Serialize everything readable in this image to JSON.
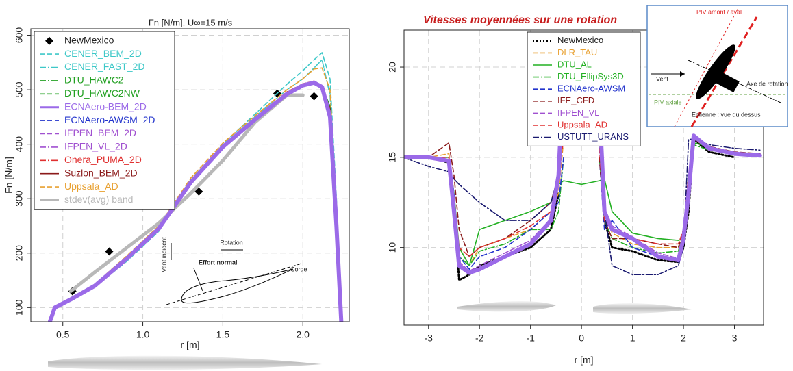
{
  "chart_data": [
    {
      "type": "line",
      "title": "Fn [N/m], U∞=15 m/s",
      "x_label": "r [m]",
      "y_label": "Fn [N/m]",
      "xlim": [
        0.3,
        2.29
      ],
      "ylim": [
        74,
        612
      ],
      "xticks": [
        0.5,
        {
          "value": 1.0,
          "label": "1.0"
        },
        1.5,
        {
          "value": 2.0,
          "label": "2.0"
        }
      ],
      "yticks": [
        100,
        200,
        300,
        400,
        500,
        600
      ],
      "grid": true,
      "x": [
        0.42,
        0.45,
        0.55,
        0.7,
        0.9,
        1.1,
        1.3,
        1.5,
        1.7,
        1.9,
        2.0,
        2.07,
        2.12,
        2.17,
        2.21,
        2.24
      ],
      "annotations": [
        "Vent incident",
        "Rotation",
        "Effort normal",
        "Corde"
      ],
      "series": [
        {
          "name": "NewMexico",
          "color": "#000000",
          "marker": "diamond",
          "x": [
            0.56,
            0.79,
            1.35,
            1.84,
            2.07
          ],
          "values": [
            130,
            203,
            313,
            493,
            488
          ]
        },
        {
          "name": "CENER_BEM_2D",
          "color": "#3ec8c8",
          "dash": "dashed",
          "values": [
            75,
            100,
            112,
            138,
            185,
            240,
            330,
            400,
            455,
            510,
            535,
            555,
            568,
            520,
            300,
            75
          ]
        },
        {
          "name": "CENER_FAST_2D",
          "color": "#3ec8c8",
          "dash": "dashdot",
          "values": [
            75,
            100,
            113,
            139,
            187,
            243,
            332,
            398,
            450,
            500,
            520,
            540,
            555,
            490,
            280,
            75
          ]
        },
        {
          "name": "DTU_HAWC2",
          "color": "#22a022",
          "dash": "dashdot",
          "values": [
            75,
            100,
            115,
            140,
            190,
            248,
            335,
            397,
            447,
            495,
            510,
            515,
            505,
            470,
            260,
            75
          ]
        },
        {
          "name": "DTU_HAWC2NW",
          "color": "#22a022",
          "dash": "dashed",
          "values": [
            75,
            100,
            114,
            141,
            191,
            246,
            333,
            396,
            446,
            494,
            509,
            514,
            506,
            468,
            262,
            75
          ]
        },
        {
          "name": "ECNAero-BEM_2D",
          "color": "#9b6ae8",
          "dash": "solid",
          "width": 6,
          "values": [
            75,
            100,
            115,
            140,
            190,
            245,
            330,
            395,
            445,
            492,
            508,
            513,
            505,
            450,
            250,
            75
          ]
        },
        {
          "name": "ECNAero-AWSM_2D",
          "color": "#2233cc",
          "dash": "dashed",
          "values": [
            75,
            100,
            115,
            141,
            191,
            246,
            331,
            396,
            446,
            493,
            507,
            512,
            504,
            455,
            255,
            75
          ]
        },
        {
          "name": "IFPEN_BEM_2D",
          "color": "#a050d0",
          "dash": "dashed",
          "values": [
            75,
            100,
            114,
            140,
            190,
            245,
            331,
            396,
            446,
            494,
            510,
            516,
            508,
            460,
            255,
            75
          ]
        },
        {
          "name": "IFPEN_VL_2D",
          "color": "#a050d0",
          "dash": "dashdot",
          "values": [
            75,
            100,
            115,
            141,
            189,
            244,
            329,
            394,
            444,
            491,
            506,
            511,
            503,
            452,
            252,
            75
          ]
        },
        {
          "name": "Onera_PUMA_2D",
          "color": "#e03030",
          "dash": "dashdot",
          "values": [
            75,
            100,
            116,
            142,
            192,
            247,
            333,
            398,
            448,
            496,
            511,
            516,
            507,
            462,
            258,
            75
          ]
        },
        {
          "name": "Suzlon_BEM_2D",
          "color": "#8b1a1a",
          "dash": "solid",
          "values": [
            75,
            100,
            115,
            140,
            190,
            246,
            332,
            397,
            447,
            495,
            510,
            515,
            506,
            465,
            257,
            75
          ]
        },
        {
          "name": "Uppsala_AD",
          "color": "#e8a030",
          "dash": "dashed",
          "values": [
            75,
            100,
            116,
            143,
            195,
            250,
            338,
            402,
            452,
            500,
            520,
            538,
            540,
            500,
            280,
            75
          ]
        },
        {
          "name": "stdev(avg) band",
          "color": "#b8b8b8",
          "dash": "solid",
          "width": 5,
          "values": [
            null,
            null,
            130,
            165,
            210,
            255,
            310,
            370,
            440,
            490,
            490,
            null,
            null,
            null,
            null,
            null
          ]
        }
      ]
    },
    {
      "type": "line",
      "title": "Vitesses moyennées sur une rotation",
      "x_label": "r [m]",
      "xlim": [
        -3.48,
        3.57
      ],
      "ylim": [
        5.7,
        22.05
      ],
      "xticks": [
        -3,
        -2,
        -1,
        0,
        1,
        2,
        3
      ],
      "yticks": [
        10,
        15,
        20
      ],
      "grid": true,
      "x": [
        -3.5,
        -3,
        -2.6,
        -2.5,
        -2.4,
        -2.2,
        -2,
        -1.5,
        -1,
        -0.6,
        -0.45,
        -0.35,
        0,
        0.35,
        0.45,
        0.6,
        1,
        1.5,
        1.9,
        2.0,
        2.1,
        2.2,
        2.5,
        3,
        3.5
      ],
      "annotations": [
        "PIV amont / aval",
        "Vent",
        "Axe de rotation",
        "PIV axiale",
        "Eolienne : vue du dessus"
      ],
      "series": [
        {
          "color": "#9b6ae8",
          "dash": "solid",
          "width": 6,
          "values": [
            15,
            15,
            14.8,
            12,
            9,
            8.6,
            8.8,
            9.5,
            10.2,
            11.5,
            14,
            20,
            null,
            18,
            12,
            11,
            10.5,
            9.5,
            9.3,
            10.5,
            13,
            16.2,
            15.5,
            15.2,
            15.1
          ]
        },
        {
          "name": "NewMexico",
          "color": "#000000",
          "dash": "dotted",
          "width": 3,
          "values": [
            null,
            15,
            14.7,
            12,
            8.2,
            8.5,
            9,
            9.5,
            10,
            11,
            13,
            null,
            null,
            null,
            11.5,
            10,
            9.8,
            9.3,
            9.2,
            10,
            12,
            16,
            15.3,
            15,
            null
          ]
        },
        {
          "name": "DLR_TAU",
          "color": "#e8a030",
          "dash": "dashed",
          "values": [
            15,
            15,
            15.2,
            13,
            10,
            9,
            10,
            10.5,
            11,
            12,
            13,
            16,
            null,
            16,
            12,
            10.8,
            10.2,
            10,
            10,
            11,
            14,
            16,
            15.5,
            15.2,
            15.1
          ]
        },
        {
          "name": "DTU_AL",
          "color": "#22b022",
          "dash": "solid",
          "values": [
            15,
            15,
            15,
            13,
            10,
            9,
            11,
            11.5,
            12,
            12.5,
            13.5,
            13.7,
            13.5,
            13.7,
            13.8,
            12,
            10.8,
            10.5,
            10.4,
            10.5,
            13,
            15.8,
            15.6,
            15.2,
            15.2
          ]
        },
        {
          "name": "DTU_EllipSys3D",
          "color": "#22b022",
          "dash": "dashdot",
          "values": [
            15,
            15,
            15,
            12.5,
            9.5,
            9,
            9.8,
            10.2,
            11,
            11,
            12,
            15,
            null,
            15,
            11.5,
            10.5,
            10,
            9.7,
            9.8,
            11,
            13.5,
            15.7,
            15.4,
            15.2,
            15.1
          ]
        },
        {
          "name": "ECNAero-AWSM",
          "color": "#2233cc",
          "dash": "dashed",
          "values": [
            15,
            15,
            15,
            13,
            9.5,
            8.8,
            9.5,
            10,
            11,
            12,
            12.5,
            15,
            null,
            15,
            11,
            11.5,
            10,
            9.5,
            9.2,
            10.5,
            13,
            16,
            15.6,
            15.2,
            15.1
          ]
        },
        {
          "name": "IFE_CFD",
          "color": "#8b1a1a",
          "dash": "dashed",
          "values": [
            15,
            15,
            15.8,
            14,
            11,
            9.5,
            10,
            10.5,
            11.5,
            12.5,
            14,
            17,
            null,
            15,
            11.5,
            10.5,
            10.5,
            10.2,
            10,
            11,
            14,
            16,
            15.6,
            15.3,
            15.2
          ]
        },
        {
          "name": "IFPEN_VL",
          "color": "#a050d0",
          "dash": "dashed",
          "values": [
            15,
            15,
            15,
            12.2,
            9.2,
            8.7,
            9,
            9.7,
            10.4,
            11.6,
            14,
            19,
            null,
            17,
            12,
            11.2,
            10.6,
            9.7,
            9.4,
            10.5,
            13,
            16.2,
            15.5,
            15.2,
            15.1
          ]
        },
        {
          "name": "Uppsala_AD",
          "color": "#e03030",
          "dash": "dashed",
          "values": [
            15,
            15,
            15,
            12.5,
            10,
            9.5,
            10,
            10.5,
            11.2,
            12,
            14,
            16,
            null,
            15.5,
            11.5,
            11,
            10.5,
            10.2,
            10.2,
            11,
            14,
            16,
            15.6,
            15.2,
            15.1
          ]
        },
        {
          "name": "USTUTT_URANS",
          "color": "#1a1a70",
          "dash": "dashdot",
          "values": [
            15,
            14.5,
            14.2,
            13.8,
            13.5,
            13,
            12.5,
            11.5,
            11.5,
            12.5,
            14,
            18,
            null,
            16,
            12,
            9,
            8.5,
            8.5,
            9,
            10,
            16,
            16,
            15.7,
            15.5,
            15.4
          ]
        }
      ]
    }
  ]
}
